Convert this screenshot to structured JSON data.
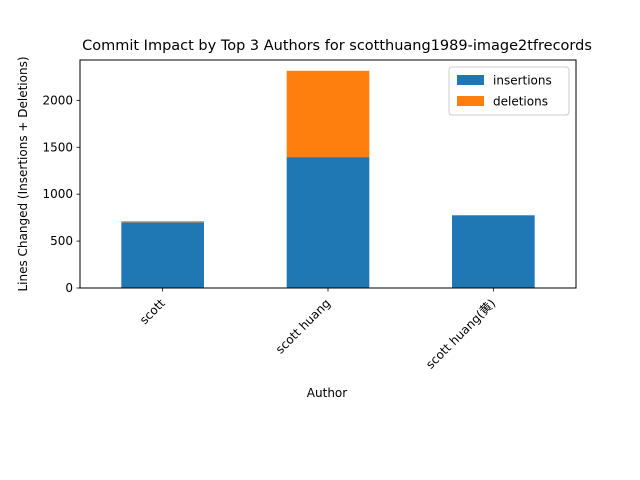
{
  "chart_data": {
    "type": "bar",
    "stacked": true,
    "title": "Commit Impact by Top 3 Authors for scotthuang1989-image2tfrecords",
    "xlabel": "Author",
    "ylabel": "Lines Changed (Insertions + Deletions)",
    "categories": [
      "scott",
      "scott huang",
      "scott huang(黄)"
    ],
    "series": [
      {
        "name": "insertions",
        "values": [
          700,
          1395,
          775
        ],
        "color": "#1f77b4"
      },
      {
        "name": "deletions",
        "values": [
          12,
          920,
          0
        ],
        "color": "#ff7f0e"
      }
    ],
    "ylim": [
      0,
      2430
    ],
    "yticks": [
      0,
      500,
      1000,
      1500,
      2000
    ],
    "grid": false,
    "legend": "top-right"
  }
}
